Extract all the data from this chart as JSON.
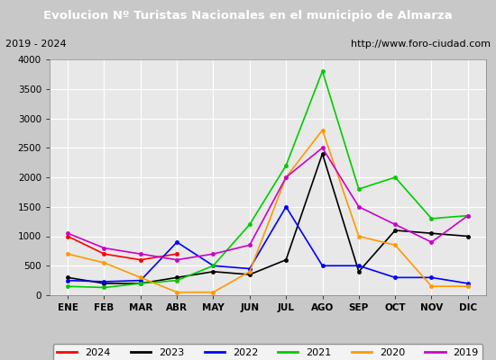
{
  "title": "Evolucion Nº Turistas Nacionales en el municipio de Almarza",
  "subtitle_left": "2019 - 2024",
  "subtitle_right": "http://www.foro-ciudad.com",
  "months": [
    "ENE",
    "FEB",
    "MAR",
    "ABR",
    "MAY",
    "JUN",
    "JUL",
    "AGO",
    "SEP",
    "OCT",
    "NOV",
    "DIC"
  ],
  "ylim": [
    0,
    4000
  ],
  "yticks": [
    0,
    500,
    1000,
    1500,
    2000,
    2500,
    3000,
    3500,
    4000
  ],
  "series": {
    "2024": {
      "color": "#ff0000",
      "values": [
        1000,
        700,
        600,
        700,
        null,
        null,
        null,
        null,
        null,
        null,
        null,
        null
      ]
    },
    "2023": {
      "color": "#000000",
      "values": [
        300,
        200,
        200,
        300,
        400,
        350,
        600,
        2400,
        400,
        1100,
        1050,
        1000
      ]
    },
    "2022": {
      "color": "#0000ff",
      "values": [
        250,
        230,
        250,
        900,
        500,
        450,
        1500,
        500,
        500,
        300,
        300,
        200
      ]
    },
    "2021": {
      "color": "#00cc00",
      "values": [
        150,
        130,
        200,
        250,
        500,
        1200,
        2200,
        3800,
        1800,
        2000,
        1300,
        1350
      ]
    },
    "2020": {
      "color": "#ff9900",
      "values": [
        700,
        550,
        300,
        50,
        50,
        400,
        2000,
        2800,
        1000,
        850,
        150,
        150
      ]
    },
    "2019": {
      "color": "#cc00cc",
      "values": [
        1050,
        800,
        700,
        600,
        700,
        850,
        2000,
        2500,
        1500,
        1200,
        900,
        1350
      ]
    }
  },
  "title_bg_color": "#4472c4",
  "title_text_color": "#ffffff",
  "plot_bg_color": "#e8e8e8",
  "fig_bg_color": "#c8c8c8",
  "grid_color": "#ffffff",
  "legend_order": [
    "2024",
    "2023",
    "2022",
    "2021",
    "2020",
    "2019"
  ]
}
